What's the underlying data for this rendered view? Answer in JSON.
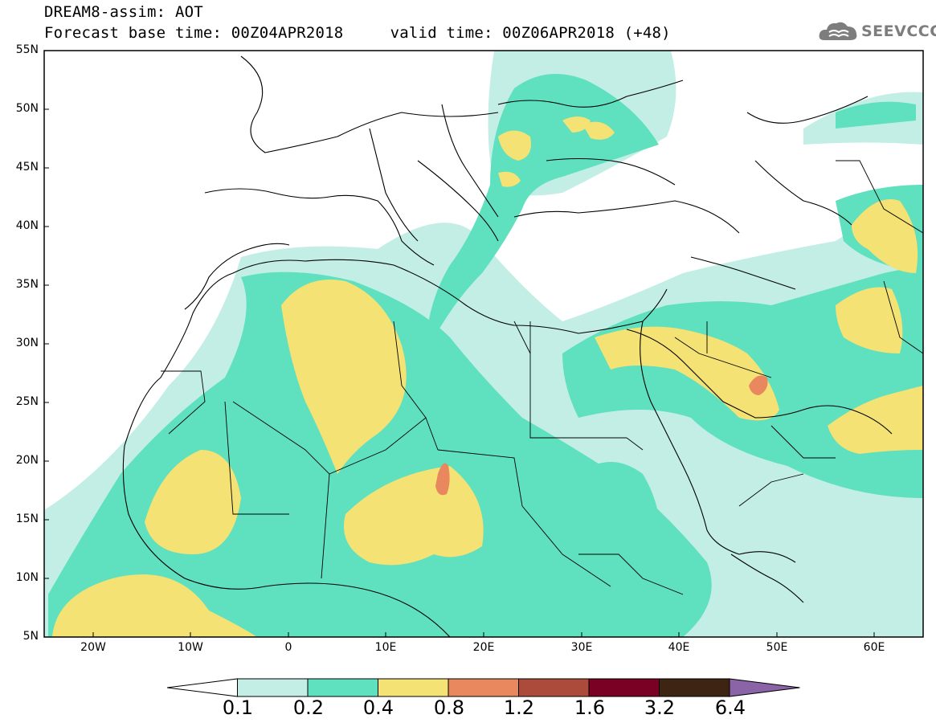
{
  "title": {
    "line1": "DREAM8-assim: AOT",
    "line2": "Forecast base time: 00Z04APR2018     valid time: 00Z06APR2018 (+48)"
  },
  "logo": {
    "text": "SEEVCCC",
    "icon": "cloud-icon"
  },
  "map": {
    "lat_labels": [
      "55N",
      "50N",
      "45N",
      "40N",
      "35N",
      "30N",
      "25N",
      "20N",
      "15N",
      "10N",
      "5N"
    ],
    "lon_labels": [
      "20W",
      "10W",
      "0",
      "10E",
      "20E",
      "30E",
      "40E",
      "50E",
      "60E"
    ],
    "lon_range": [
      -25,
      65
    ],
    "lat_range": [
      5,
      55
    ]
  },
  "colorbar": {
    "labels": [
      "0.1",
      "0.2",
      "0.4",
      "0.8",
      "1.2",
      "1.6",
      "3.2",
      "6.4"
    ],
    "colors": [
      "#c2eee6",
      "#5fe0be",
      "#f4e274",
      "#e9875e",
      "#ac4a3c",
      "#7a0024",
      "#3e2412",
      "#8b63a7"
    ],
    "under_color": "#ffffff"
  }
}
